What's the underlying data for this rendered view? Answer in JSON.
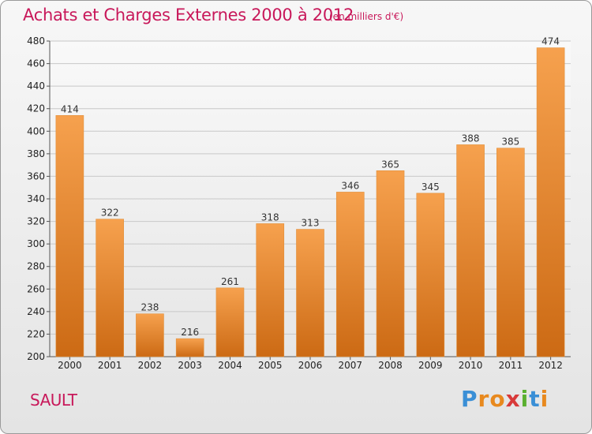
{
  "header": {
    "title": "Achats et Charges Externes 2000 à 2012",
    "subtitle": "(en milliers d'€)"
  },
  "footer": {
    "commune": "SAULT",
    "logo_letters": [
      "P",
      "r",
      "o",
      "x",
      "i",
      "t",
      "i"
    ],
    "logo_colors": [
      "#3a8fd6",
      "#e8891e",
      "#e8891e",
      "#d83a3a",
      "#5ab030",
      "#3a8fd6",
      "#e8891e"
    ]
  },
  "colors": {
    "bar_top": "#f6a14e",
    "bar_bottom": "#cc6a14",
    "grid": "#c8c8c8",
    "title": "#c8185a"
  },
  "chart_data": {
    "type": "bar",
    "title": "Achats et Charges Externes 2000 à 2012",
    "subtitle": "(en milliers d'€)",
    "categories": [
      "2000",
      "2001",
      "2002",
      "2003",
      "2004",
      "2005",
      "2006",
      "2007",
      "2008",
      "2009",
      "2010",
      "2011",
      "2012"
    ],
    "values": [
      414,
      322,
      238,
      216,
      261,
      318,
      313,
      346,
      365,
      345,
      388,
      385,
      474
    ],
    "ylim": [
      200,
      480
    ],
    "yticks": [
      200,
      220,
      240,
      260,
      280,
      300,
      320,
      340,
      360,
      380,
      400,
      420,
      440,
      460,
      480
    ],
    "grid": true,
    "legend": "none"
  }
}
